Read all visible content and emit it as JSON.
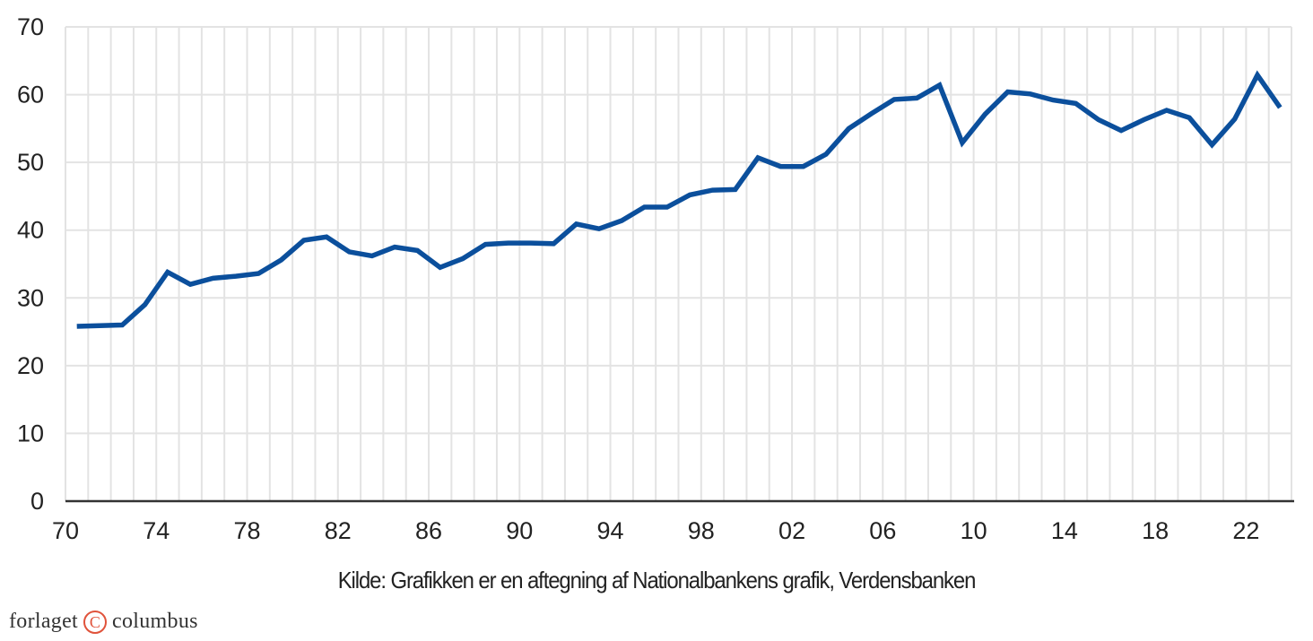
{
  "chart_data": {
    "type": "line",
    "title": "",
    "xlabel": "",
    "ylabel": "",
    "ylim": [
      0,
      70
    ],
    "yticks": [
      "0",
      "10",
      "20",
      "30",
      "40",
      "50",
      "60",
      "70"
    ],
    "xlim": [
      1970,
      2024
    ],
    "xticks": [
      {
        "year": 1970,
        "label": "70"
      },
      {
        "year": 1974,
        "label": "74"
      },
      {
        "year": 1978,
        "label": "78"
      },
      {
        "year": 1982,
        "label": "82"
      },
      {
        "year": 1986,
        "label": "86"
      },
      {
        "year": 1990,
        "label": "90"
      },
      {
        "year": 1994,
        "label": "94"
      },
      {
        "year": 1998,
        "label": "98"
      },
      {
        "year": 2002,
        "label": "02"
      },
      {
        "year": 2006,
        "label": "06"
      },
      {
        "year": 2010,
        "label": "10"
      },
      {
        "year": 2014,
        "label": "14"
      },
      {
        "year": 2018,
        "label": "18"
      },
      {
        "year": 2022,
        "label": "22"
      }
    ],
    "grid": true,
    "legend": null,
    "series": [
      {
        "name": "",
        "color": "#0b4f9c",
        "x": [
          1970,
          1971,
          1972,
          1973,
          1974,
          1975,
          1976,
          1977,
          1978,
          1979,
          1980,
          1981,
          1982,
          1983,
          1984,
          1985,
          1986,
          1987,
          1988,
          1989,
          1990,
          1991,
          1992,
          1993,
          1994,
          1995,
          1996,
          1997,
          1998,
          1999,
          2000,
          2001,
          2002,
          2003,
          2004,
          2005,
          2006,
          2007,
          2008,
          2009,
          2010,
          2011,
          2012,
          2013,
          2014,
          2015,
          2016,
          2017,
          2018,
          2019,
          2020,
          2021,
          2022,
          2023
        ],
        "values": [
          25.8,
          25.9,
          26.0,
          29.0,
          33.8,
          32.0,
          32.9,
          33.2,
          33.6,
          35.6,
          38.5,
          39.0,
          36.8,
          36.2,
          37.5,
          37.0,
          34.5,
          35.8,
          37.9,
          38.1,
          38.1,
          38.0,
          40.9,
          40.2,
          41.4,
          43.4,
          43.4,
          45.2,
          45.9,
          46.0,
          50.7,
          49.4,
          49.4,
          51.2,
          55.0,
          57.2,
          59.3,
          59.5,
          61.4,
          52.9,
          57.1,
          60.4,
          60.1,
          59.2,
          58.7,
          56.3,
          54.7,
          56.3,
          57.7,
          56.6,
          52.6,
          56.4,
          62.9,
          58.1
        ]
      }
    ]
  },
  "source": "Kilde: Grafikken er en aftegning af Nationalbankens grafik, Verdensbanken",
  "logo": {
    "left": "forlaget",
    "mark": "C",
    "right": "columbus",
    "mark_color": "#e0533b"
  }
}
